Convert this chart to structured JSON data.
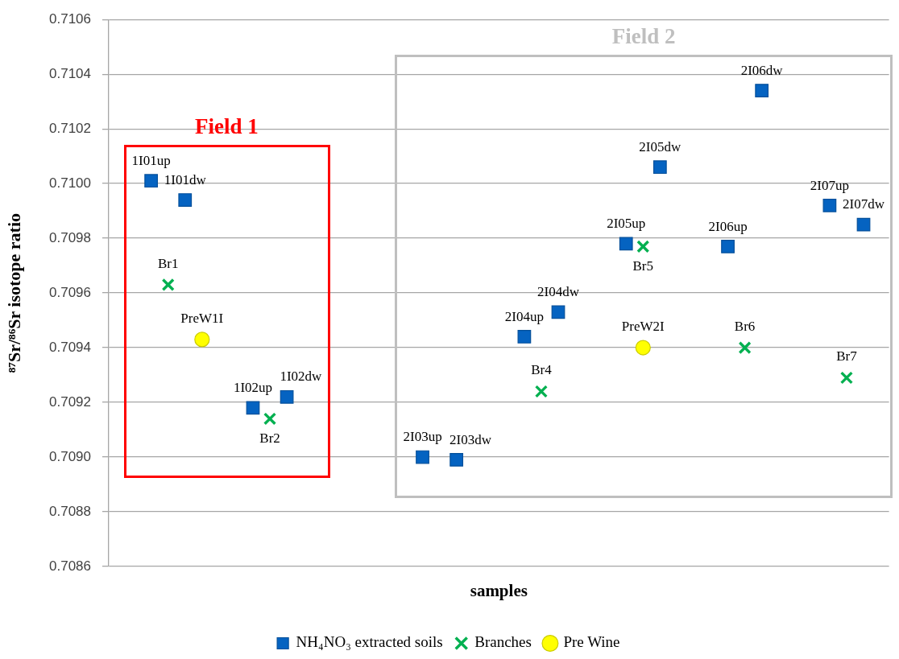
{
  "chart_data": {
    "type": "scatter",
    "xlabel": "samples",
    "ylabel": "⁸⁷Sr/⁸⁶Sr isotope ratio",
    "categories": [
      null,
      null,
      null,
      null,
      null,
      null,
      null,
      null,
      null,
      null,
      null,
      null,
      null,
      null,
      null,
      null,
      null,
      null,
      null,
      null,
      null,
      null,
      null,
      null,
      null,
      null,
      null,
      null,
      null,
      null,
      null,
      null,
      null,
      null,
      null,
      null,
      null,
      null,
      null,
      null,
      null,
      null,
      null,
      null,
      null,
      null
    ],
    "series": [
      {
        "name": "NH₄NO₃ extracted soils",
        "color": "#0563c1",
        "marker": "square",
        "values": [
          null,
          null,
          0.71001,
          null,
          0.70994,
          null,
          null,
          null,
          0.70918,
          null,
          0.70922,
          null,
          null,
          null,
          null,
          null,
          null,
          null,
          0.709,
          null,
          0.70899,
          null,
          null,
          null,
          0.70944,
          null,
          0.70953,
          null,
          null,
          null,
          0.70978,
          null,
          0.71006,
          null,
          null,
          null,
          0.70977,
          null,
          0.71034,
          null,
          null,
          null,
          0.70992,
          null,
          0.70985,
          null
        ],
        "value_labels": [
          null,
          null,
          "1I01up",
          null,
          "1I01dw",
          null,
          null,
          null,
          "1I02up",
          null,
          "1I02dw",
          null,
          null,
          null,
          null,
          null,
          null,
          null,
          "2I03up",
          null,
          "2I03dw",
          null,
          null,
          null,
          "2I04up",
          null,
          "2I04dw",
          null,
          null,
          null,
          "2I05up",
          null,
          "2I05dw",
          null,
          null,
          null,
          "2I06up",
          null,
          "2I06dw",
          null,
          null,
          null,
          "2I07up",
          null,
          "2I07dw",
          null
        ]
      },
      {
        "name": "Branches",
        "color": "#00b050",
        "marker": "cross",
        "values": [
          null,
          null,
          null,
          0.70963,
          null,
          null,
          null,
          null,
          null,
          0.70914,
          null,
          null,
          null,
          null,
          null,
          null,
          null,
          null,
          null,
          null,
          null,
          null,
          null,
          null,
          null,
          0.70924,
          null,
          null,
          null,
          null,
          null,
          0.70977,
          null,
          null,
          null,
          null,
          null,
          0.7094,
          null,
          null,
          null,
          null,
          null,
          0.70929,
          null,
          null
        ],
        "value_labels": [
          null,
          null,
          null,
          "Br1",
          null,
          null,
          null,
          null,
          null,
          "Br2",
          null,
          null,
          null,
          null,
          null,
          null,
          null,
          null,
          null,
          null,
          null,
          null,
          null,
          null,
          null,
          "Br4",
          null,
          null,
          null,
          null,
          null,
          "Br5",
          null,
          null,
          null,
          null,
          null,
          "Br6",
          null,
          null,
          null,
          null,
          null,
          "Br7",
          null,
          null
        ]
      },
      {
        "name": "Pre Wine",
        "color": "#ffff00",
        "marker": "circle",
        "values": [
          null,
          null,
          null,
          null,
          null,
          0.70943,
          null,
          null,
          null,
          null,
          null,
          null,
          null,
          null,
          null,
          null,
          null,
          null,
          null,
          null,
          null,
          null,
          null,
          null,
          null,
          null,
          null,
          null,
          null,
          null,
          null,
          0.7094,
          null,
          null,
          null,
          null,
          null,
          null,
          null,
          null,
          null,
          null,
          null,
          null,
          null,
          null
        ],
        "value_labels": [
          null,
          null,
          null,
          null,
          null,
          "PreW1I",
          null,
          null,
          null,
          null,
          null,
          null,
          null,
          null,
          null,
          null,
          null,
          null,
          null,
          null,
          null,
          null,
          null,
          null,
          null,
          null,
          null,
          null,
          null,
          null,
          null,
          "PreW2I",
          null,
          null,
          null,
          null,
          null,
          null,
          null,
          null,
          null,
          null,
          null,
          null,
          null,
          null
        ]
      }
    ],
    "ylim": [
      0.7086,
      0.7106
    ],
    "yticks": [
      0.7086,
      0.7088,
      {
        "value": 0.709,
        "label": "0.7090"
      },
      0.7092,
      0.7094,
      0.7096,
      0.7098,
      {
        "value": 0.71,
        "label": "0.7100"
      },
      0.7102,
      0.7104,
      0.7106
    ],
    "grid": "y",
    "legend": "bottom",
    "tick_labels": "y",
    "annotations": [
      "Field 1",
      "Field 2"
    ]
  }
}
